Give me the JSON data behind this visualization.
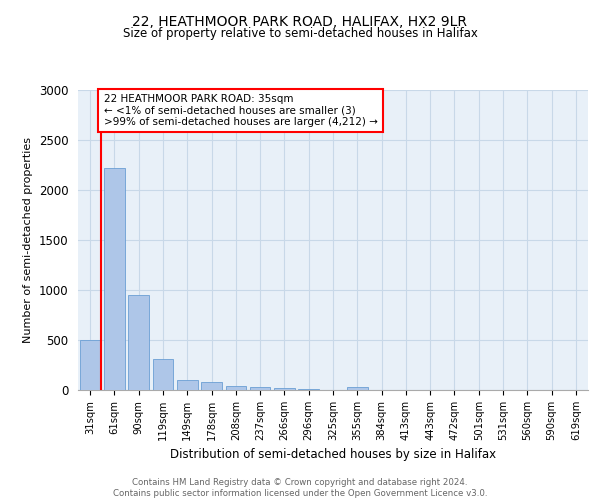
{
  "title1": "22, HEATHMOOR PARK ROAD, HALIFAX, HX2 9LR",
  "title2": "Size of property relative to semi-detached houses in Halifax",
  "xlabel": "Distribution of semi-detached houses by size in Halifax",
  "ylabel": "Number of semi-detached properties",
  "categories": [
    "31sqm",
    "61sqm",
    "90sqm",
    "119sqm",
    "149sqm",
    "178sqm",
    "208sqm",
    "237sqm",
    "266sqm",
    "296sqm",
    "325sqm",
    "355sqm",
    "384sqm",
    "413sqm",
    "443sqm",
    "472sqm",
    "501sqm",
    "531sqm",
    "560sqm",
    "590sqm",
    "619sqm"
  ],
  "values": [
    500,
    2225,
    950,
    315,
    100,
    85,
    45,
    30,
    25,
    10,
    5,
    30,
    0,
    0,
    0,
    0,
    0,
    0,
    0,
    0,
    0
  ],
  "bar_color": "#aec6e8",
  "bar_edge_color": "#6b9fd4",
  "ylim": [
    0,
    3000
  ],
  "yticks": [
    0,
    500,
    1000,
    1500,
    2000,
    2500,
    3000
  ],
  "annotation_line1": "22 HEATHMOOR PARK ROAD: 35sqm",
  "annotation_line2": "← <1% of semi-detached houses are smaller (3)",
  "annotation_line3": ">99% of semi-detached houses are larger (4,212) →",
  "annotation_box_color": "#ff0000",
  "footer1": "Contains HM Land Registry data © Crown copyright and database right 2024.",
  "footer2": "Contains public sector information licensed under the Open Government Licence v3.0.",
  "grid_color": "#c8d8e8",
  "background_color": "#e8f0f8",
  "red_line_x": -0.5
}
